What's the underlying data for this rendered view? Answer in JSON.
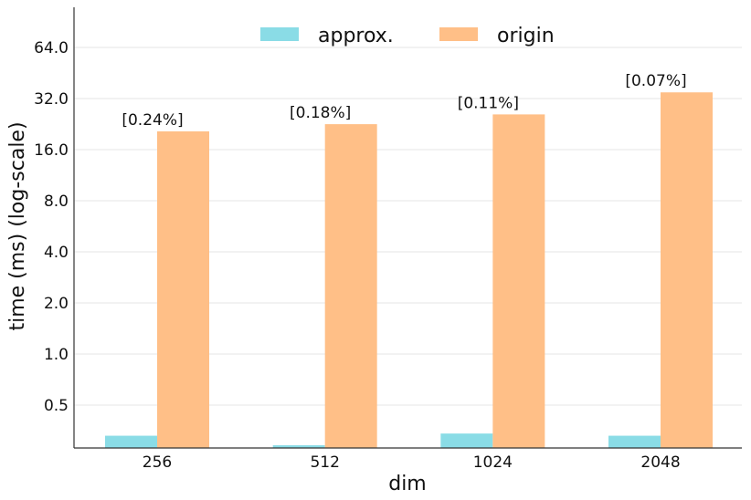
{
  "chart_data": {
    "type": "bar",
    "title": "",
    "xlabel": "dim",
    "ylabel": "time (ms) (log-scale)",
    "yscale": "log2",
    "ylim": [
      0.27,
      100
    ],
    "yticks": [
      0.5,
      1.0,
      2.0,
      4.0,
      8.0,
      16.0,
      32.0,
      64.0
    ],
    "ytick_labels": [
      "0.5",
      "1.0",
      "2.0",
      "4.0",
      "8.0",
      "16.0",
      "32.0",
      "64.0"
    ],
    "grid": "horizontal",
    "legend_position": "top-center",
    "categories": [
      "256",
      "512",
      "1024",
      "2048"
    ],
    "series": [
      {
        "name": "approx.",
        "color": "#8adce6",
        "values": [
          0.33,
          0.29,
          0.34,
          0.33
        ]
      },
      {
        "name": "origin",
        "color": "#ffbf87",
        "values": [
          20.5,
          22.6,
          25.8,
          34.8
        ]
      }
    ],
    "annotations": [
      "[0.24%]",
      "[0.18%]",
      "[0.11%]",
      "[0.07%]"
    ]
  }
}
